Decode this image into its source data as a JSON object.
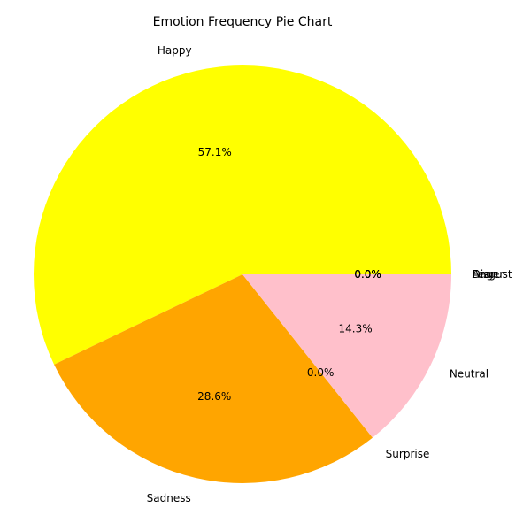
{
  "chart_data": {
    "type": "pie",
    "title": "Emotion Frequency Pie Chart",
    "start_angle_deg": 0,
    "direction": "counterclockwise",
    "slices": [
      {
        "label": "Happy",
        "value": 57.1,
        "pct_label": "57.1%",
        "color": "#ffff00"
      },
      {
        "label": "Sadness",
        "value": 28.6,
        "pct_label": "28.6%",
        "color": "#ffa500"
      },
      {
        "label": "Surprise",
        "value": 0,
        "pct_label": "0.0%",
        "color": "#ff0000"
      },
      {
        "label": "Neutral",
        "value": 14.3,
        "pct_label": "14.3%",
        "color": "#ffc0cb"
      },
      {
        "label": "Anger",
        "value": 0,
        "pct_label": "0.0%",
        "color": "#ff0000"
      },
      {
        "label": "Fear",
        "value": 0,
        "pct_label": "0.0%",
        "color": "#800080"
      },
      {
        "label": "Disgust",
        "value": 0,
        "pct_label": "0.0%",
        "color": "#008000"
      }
    ]
  }
}
